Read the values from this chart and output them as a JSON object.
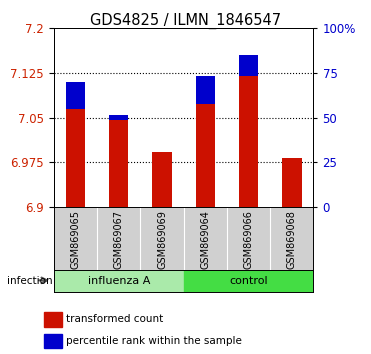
{
  "title": "GDS4825 / ILMN_1846547",
  "samples": [
    "GSM869065",
    "GSM869067",
    "GSM869069",
    "GSM869064",
    "GSM869066",
    "GSM869068"
  ],
  "ylim": [
    6.9,
    7.2
  ],
  "yticks": [
    6.9,
    6.975,
    7.05,
    7.125,
    7.2
  ],
  "ytick_labels": [
    "6.9",
    "6.975",
    "7.05",
    "7.125",
    "7.2"
  ],
  "red_values": [
    7.11,
    7.055,
    6.993,
    7.12,
    7.155,
    6.983
  ],
  "blue_values": [
    7.065,
    7.046,
    6.993,
    7.073,
    7.12,
    6.983
  ],
  "bar_base": 6.9,
  "y2ticks": [
    0,
    25,
    50,
    75,
    100
  ],
  "y2tick_labels": [
    "0",
    "25",
    "50",
    "75",
    "100%"
  ],
  "bar_color_red": "#cc1100",
  "bar_color_blue": "#0000cc",
  "bg_color_main": "#ffffff",
  "bg_color_sample": "#d0d0d0",
  "left_group_color": "#aaeaaa",
  "right_group_color": "#44dd44",
  "infection_label": "infection",
  "legend_red": "transformed count",
  "legend_blue": "percentile rank within the sample",
  "title_fontsize": 10.5,
  "axis_fontsize": 8.5,
  "sample_fontsize": 7,
  "bar_width": 0.45
}
